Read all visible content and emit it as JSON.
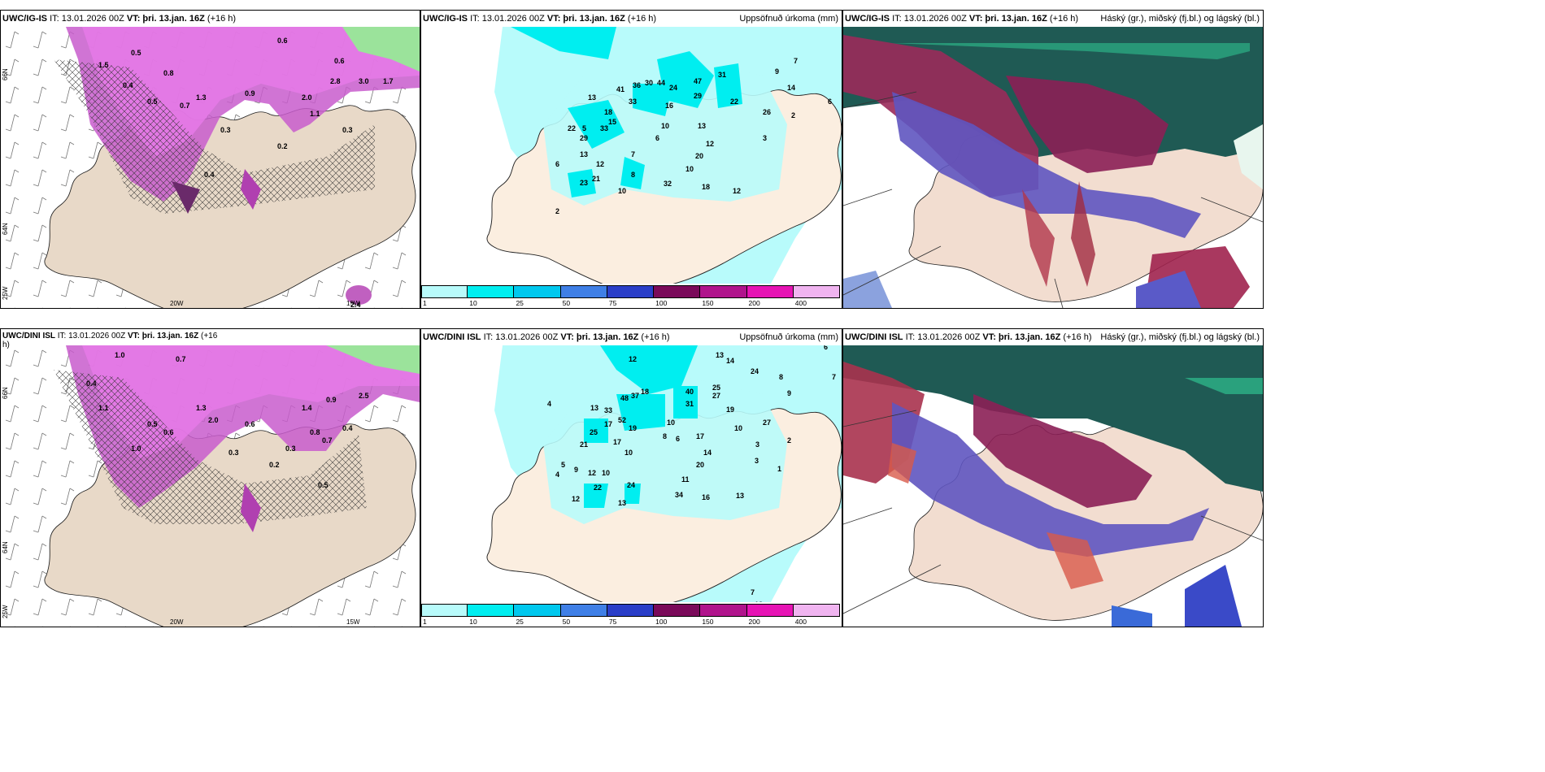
{
  "panels": [
    {
      "id": "p1",
      "header": {
        "model": "UWC/IG-IS",
        "it": "IT: 13.01.2026 00Z",
        "vt_label": "VT:",
        "vt": "þri. 13.jan. 16Z",
        "lead": "(+16 h)",
        "right": ""
      },
      "values": [
        "0.6",
        "1.5",
        "0.4",
        "0.8",
        "1.3",
        "2.0",
        "2.8",
        "3.0",
        "1.7",
        "0.5",
        "0.9",
        "0.7",
        "1.1",
        "0.2",
        "0.3",
        "0.4",
        "2.4",
        "0.6",
        "0.5",
        "0.3"
      ],
      "axis": {
        "lat1": "66N",
        "lat2": "64N",
        "lon1": "20W",
        "lon2": "15W",
        "lonw": "25W"
      }
    },
    {
      "id": "p2",
      "header": {
        "model": "UWC/IG-IS",
        "it": "IT: 13.01.2026 00Z",
        "vt_label": "VT:",
        "vt": "þri. 13.jan. 16Z",
        "lead": "(+16 h)",
        "right": "Uppsöfnuð úrkoma (mm)"
      },
      "values": [
        "13",
        "41",
        "33",
        "36",
        "30",
        "44",
        "24",
        "47",
        "29",
        "31",
        "22",
        "14",
        "16",
        "18",
        "15",
        "10",
        "13",
        "12",
        "7",
        "20",
        "10",
        "26",
        "2",
        "3",
        "6",
        "8",
        "5",
        "22",
        "33",
        "29",
        "13",
        "12",
        "23",
        "21",
        "32",
        "18",
        "12",
        "10",
        "2",
        "6",
        "7",
        "6",
        "9",
        "10"
      ],
      "colorbar": {
        "labels": [
          "1",
          "10",
          "25",
          "50",
          "75",
          "100",
          "150",
          "200",
          "400"
        ],
        "colors": [
          "#b8fbfb",
          "#00eef0",
          "#00c8ee",
          "#3f7fe6",
          "#2a3ec8",
          "#7a0a5a",
          "#b0148c",
          "#e614b4",
          "#f0b4f0"
        ]
      }
    },
    {
      "id": "p3",
      "header": {
        "model": "UWC/IG-IS",
        "it": "IT: 13.01.2026 00Z",
        "vt_label": "VT:",
        "vt": "þri. 13.jan. 16Z",
        "lead": "(+16 h)",
        "right": "Háský (gr.), miðský (fj.bl.) og lágský (bl.)"
      }
    },
    {
      "id": "p4",
      "header": {
        "model": "UWC/DINI ISL",
        "it": "IT: 13.01.2026 00Z",
        "vt_label": "VT:",
        "vt": "þri. 13.jan. 16Z",
        "lead": "(+16",
        "lead2": "h)",
        "right": ""
      },
      "values": [
        "1.0",
        "0.7",
        "0.4",
        "1.3",
        "0.6",
        "1.4",
        "0.9",
        "2.5",
        "0.5",
        "0.2",
        "0.3",
        "0.8",
        "1.1",
        "2.0",
        "0.7",
        "0.4",
        "0.3",
        "1.0",
        "0.6",
        "0.5"
      ],
      "axis": {
        "lat1": "66N",
        "lat2": "64N",
        "lon1": "20W",
        "lon2": "15W",
        "lonw": "25W"
      }
    },
    {
      "id": "p5",
      "header": {
        "model": "UWC/DINI ISL",
        "it": "IT: 13.01.2026 00Z",
        "vt_label": "VT:",
        "vt": "þri. 13.jan. 16Z",
        "lead": "(+16 h)",
        "right": "Uppsöfnuð úrkoma (mm)"
      },
      "values": [
        "12",
        "13",
        "14",
        "6",
        "24",
        "7",
        "8",
        "9",
        "13",
        "33",
        "48",
        "37",
        "18",
        "40",
        "31",
        "25",
        "27",
        "19",
        "52",
        "19",
        "17",
        "10",
        "27",
        "10",
        "8",
        "6",
        "17",
        "3",
        "2",
        "25",
        "21",
        "17",
        "10",
        "14",
        "20",
        "3",
        "1",
        "12",
        "10",
        "11",
        "24",
        "34",
        "22",
        "13",
        "16",
        "13",
        "7",
        "18",
        "4",
        "5",
        "9",
        "12",
        "4"
      ],
      "colorbar": {
        "labels": [
          "1",
          "10",
          "25",
          "50",
          "75",
          "100",
          "150",
          "200",
          "400"
        ],
        "colors": [
          "#b8fbfb",
          "#00eef0",
          "#00c8ee",
          "#3f7fe6",
          "#2a3ec8",
          "#7a0a5a",
          "#b0148c",
          "#e614b4",
          "#f0b4f0"
        ]
      }
    },
    {
      "id": "p6",
      "header": {
        "model": "UWC/DINI ISL",
        "it": "IT: 13.01.2026 00Z",
        "vt_label": "VT:",
        "vt": "þri. 13.jan. 16Z",
        "lead": "(+16 h)",
        "right": "Háský (gr.), miðský (fj.bl.) og lágský (bl.)"
      }
    }
  ]
}
